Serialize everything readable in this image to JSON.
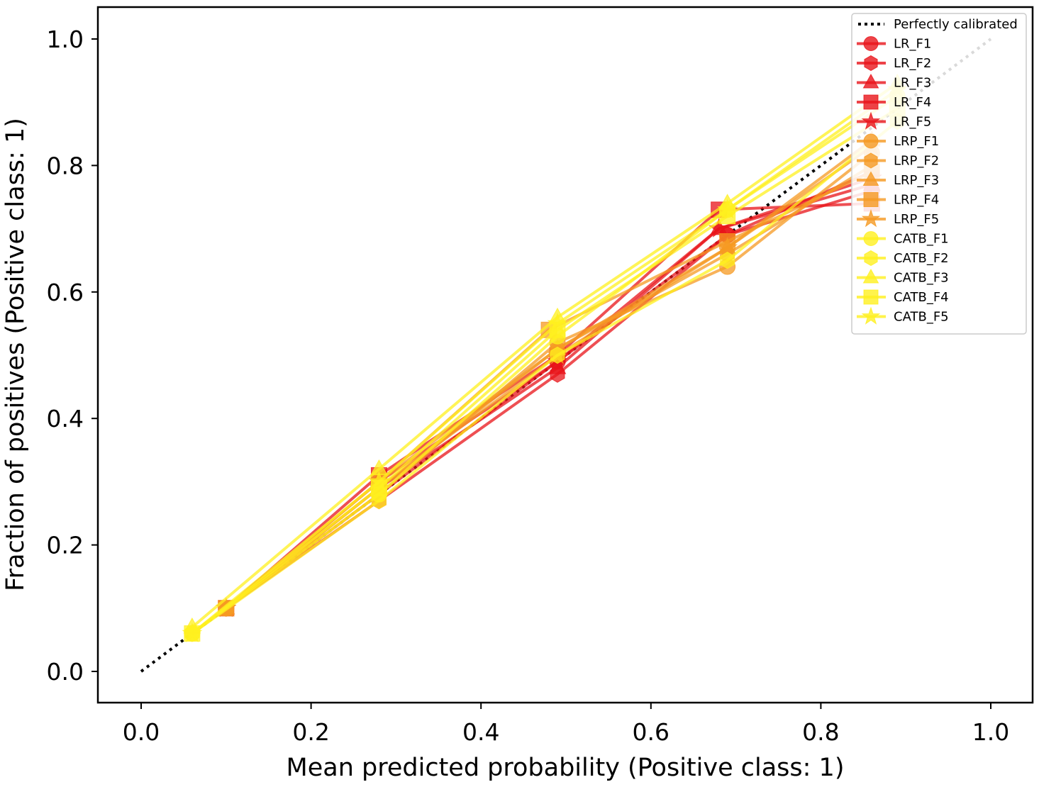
{
  "chart_data": {
    "type": "line",
    "title": "",
    "xlabel": "Mean predicted probability (Positive class: 1)",
    "ylabel": "Fraction of positives (Positive class: 1)",
    "xlim": [
      -0.1,
      1.05
    ],
    "ylim": [
      -0.05,
      1.05
    ],
    "xticks": [
      "0.0",
      "0.2",
      "0.4",
      "0.6",
      "0.8",
      "1.0"
    ],
    "yticks": [
      "0.0",
      "0.2",
      "0.4",
      "0.6",
      "0.8",
      "1.0"
    ],
    "grid": false,
    "legend_position": "top-right",
    "reference": {
      "name": "Perfectly calibrated",
      "x": [
        0,
        1
      ],
      "y": [
        0,
        1
      ],
      "color": "#000000",
      "style": "dotted"
    },
    "series": [
      {
        "name": "LR_F1",
        "color": "#e8141a",
        "marker": "circle",
        "x": [
          0.1,
          0.28,
          0.49,
          0.69,
          0.86
        ],
        "y": [
          0.1,
          0.28,
          0.49,
          0.69,
          0.76
        ]
      },
      {
        "name": "LR_F2",
        "color": "#e8141a",
        "marker": "hexagon",
        "x": [
          0.1,
          0.28,
          0.49,
          0.69,
          0.86
        ],
        "y": [
          0.1,
          0.27,
          0.47,
          0.69,
          0.79
        ]
      },
      {
        "name": "LR_F3",
        "color": "#e8141a",
        "marker": "triangle",
        "x": [
          0.1,
          0.28,
          0.49,
          0.68,
          0.86
        ],
        "y": [
          0.1,
          0.29,
          0.48,
          0.7,
          0.77
        ]
      },
      {
        "name": "LR_F4",
        "color": "#e8141a",
        "marker": "square",
        "x": [
          0.1,
          0.28,
          0.49,
          0.68,
          0.86
        ],
        "y": [
          0.1,
          0.31,
          0.5,
          0.73,
          0.74
        ]
      },
      {
        "name": "LR_F5",
        "color": "#e8141a",
        "marker": "star",
        "x": [
          0.1,
          0.28,
          0.49,
          0.68,
          0.86
        ],
        "y": [
          0.1,
          0.3,
          0.49,
          0.7,
          0.78
        ]
      },
      {
        "name": "LRP_F1",
        "color": "#f59a23",
        "marker": "circle",
        "x": [
          0.1,
          0.28,
          0.49,
          0.69,
          0.86
        ],
        "y": [
          0.1,
          0.28,
          0.52,
          0.64,
          0.82
        ]
      },
      {
        "name": "LRP_F2",
        "color": "#f59a23",
        "marker": "hexagon",
        "x": [
          0.1,
          0.28,
          0.49,
          0.69,
          0.86
        ],
        "y": [
          0.1,
          0.29,
          0.51,
          0.66,
          0.8
        ]
      },
      {
        "name": "LRP_F3",
        "color": "#f59a23",
        "marker": "triangle",
        "x": [
          0.1,
          0.28,
          0.49,
          0.69,
          0.86
        ],
        "y": [
          0.1,
          0.3,
          0.51,
          0.67,
          0.84
        ]
      },
      {
        "name": "LRP_F4",
        "color": "#f59a23",
        "marker": "square",
        "x": [
          0.1,
          0.28,
          0.48,
          0.69,
          0.86
        ],
        "y": [
          0.1,
          0.3,
          0.54,
          0.68,
          0.79
        ]
      },
      {
        "name": "LRP_F5",
        "color": "#f59a23",
        "marker": "star",
        "x": [
          0.1,
          0.28,
          0.49,
          0.69,
          0.86
        ],
        "y": [
          0.1,
          0.29,
          0.5,
          0.67,
          0.83
        ]
      },
      {
        "name": "CATB_F1",
        "color": "#fff01f",
        "marker": "circle",
        "x": [
          0.06,
          0.28,
          0.49,
          0.69,
          0.89
        ],
        "y": [
          0.06,
          0.28,
          0.53,
          0.73,
          0.91
        ]
      },
      {
        "name": "CATB_F2",
        "color": "#fff01f",
        "marker": "hexagon",
        "x": [
          0.06,
          0.28,
          0.49,
          0.69,
          0.89
        ],
        "y": [
          0.06,
          0.27,
          0.5,
          0.65,
          0.87
        ]
      },
      {
        "name": "CATB_F3",
        "color": "#fff01f",
        "marker": "triangle",
        "x": [
          0.06,
          0.28,
          0.49,
          0.69,
          0.89
        ],
        "y": [
          0.07,
          0.32,
          0.56,
          0.74,
          0.93
        ]
      },
      {
        "name": "CATB_F4",
        "color": "#fff01f",
        "marker": "square",
        "x": [
          0.06,
          0.28,
          0.49,
          0.69,
          0.89
        ],
        "y": [
          0.06,
          0.29,
          0.54,
          0.72,
          0.89
        ]
      },
      {
        "name": "CATB_F5",
        "color": "#fff01f",
        "marker": "star",
        "x": [
          0.06,
          0.28,
          0.49,
          0.69,
          0.89
        ],
        "y": [
          0.06,
          0.3,
          0.55,
          0.73,
          0.92
        ]
      }
    ]
  }
}
